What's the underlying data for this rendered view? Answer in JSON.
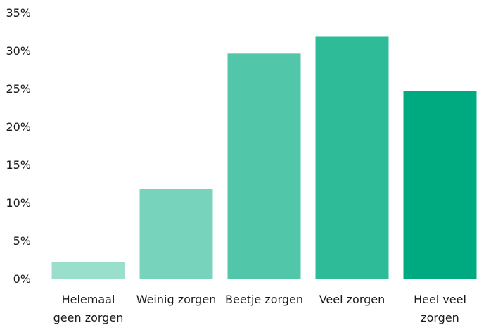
{
  "chart_data": {
    "type": "bar",
    "categories": [
      [
        "Helemaal",
        "geen zorgen"
      ],
      [
        "Weinig zorgen"
      ],
      [
        "Beetje zorgen"
      ],
      [
        "Veel zorgen"
      ],
      [
        "Heel veel",
        "zorgen"
      ]
    ],
    "values": [
      2.2,
      11.8,
      29.6,
      31.9,
      24.7
    ],
    "bar_colors": [
      "#9adfcc",
      "#78d3bd",
      "#51c6a8",
      "#2ebb97",
      "#00aa80"
    ],
    "ylim": [
      0,
      35
    ],
    "yticks": [
      {
        "value": 0,
        "label": "0%"
      },
      {
        "value": 5,
        "label": "5%"
      },
      {
        "value": 10,
        "label": "10%"
      },
      {
        "value": 15,
        "label": "15%"
      },
      {
        "value": 20,
        "label": "20%"
      },
      {
        "value": 25,
        "label": "25%"
      },
      {
        "value": 30,
        "label": "30%"
      },
      {
        "value": 35,
        "label": "35%"
      }
    ],
    "axis_color": "#bfbfbf",
    "grid": false,
    "title": "",
    "xlabel": "",
    "ylabel": ""
  }
}
